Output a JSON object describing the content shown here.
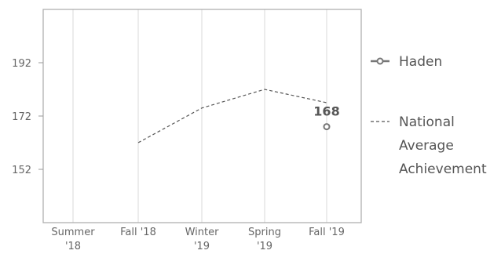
{
  "chart_data": {
    "type": "line",
    "title": "",
    "xlabel": "",
    "ylabel": "",
    "categories": [
      "Summer '18",
      "Fall '18",
      "Winter '19",
      "Spring '19",
      "Fall '19"
    ],
    "y_ticks": [
      192,
      172,
      152
    ],
    "ylim": [
      132,
      212
    ],
    "grid": "vertical",
    "legend_position": "right",
    "series": [
      {
        "name": "Haden",
        "style": "solid-with-circle-marker",
        "color": "#777777",
        "values": [
          null,
          null,
          null,
          null,
          168
        ],
        "labels": [
          "",
          "",
          "",
          "",
          "168"
        ]
      },
      {
        "name": "National Average Achievement",
        "style": "dashed",
        "color": "#555555",
        "values": [
          null,
          162,
          175,
          182,
          177
        ]
      }
    ]
  },
  "legend": {
    "items": [
      {
        "label_lines": [
          "Haden"
        ]
      },
      {
        "label_lines": [
          "National",
          "Average",
          "Achievement"
        ]
      }
    ]
  }
}
